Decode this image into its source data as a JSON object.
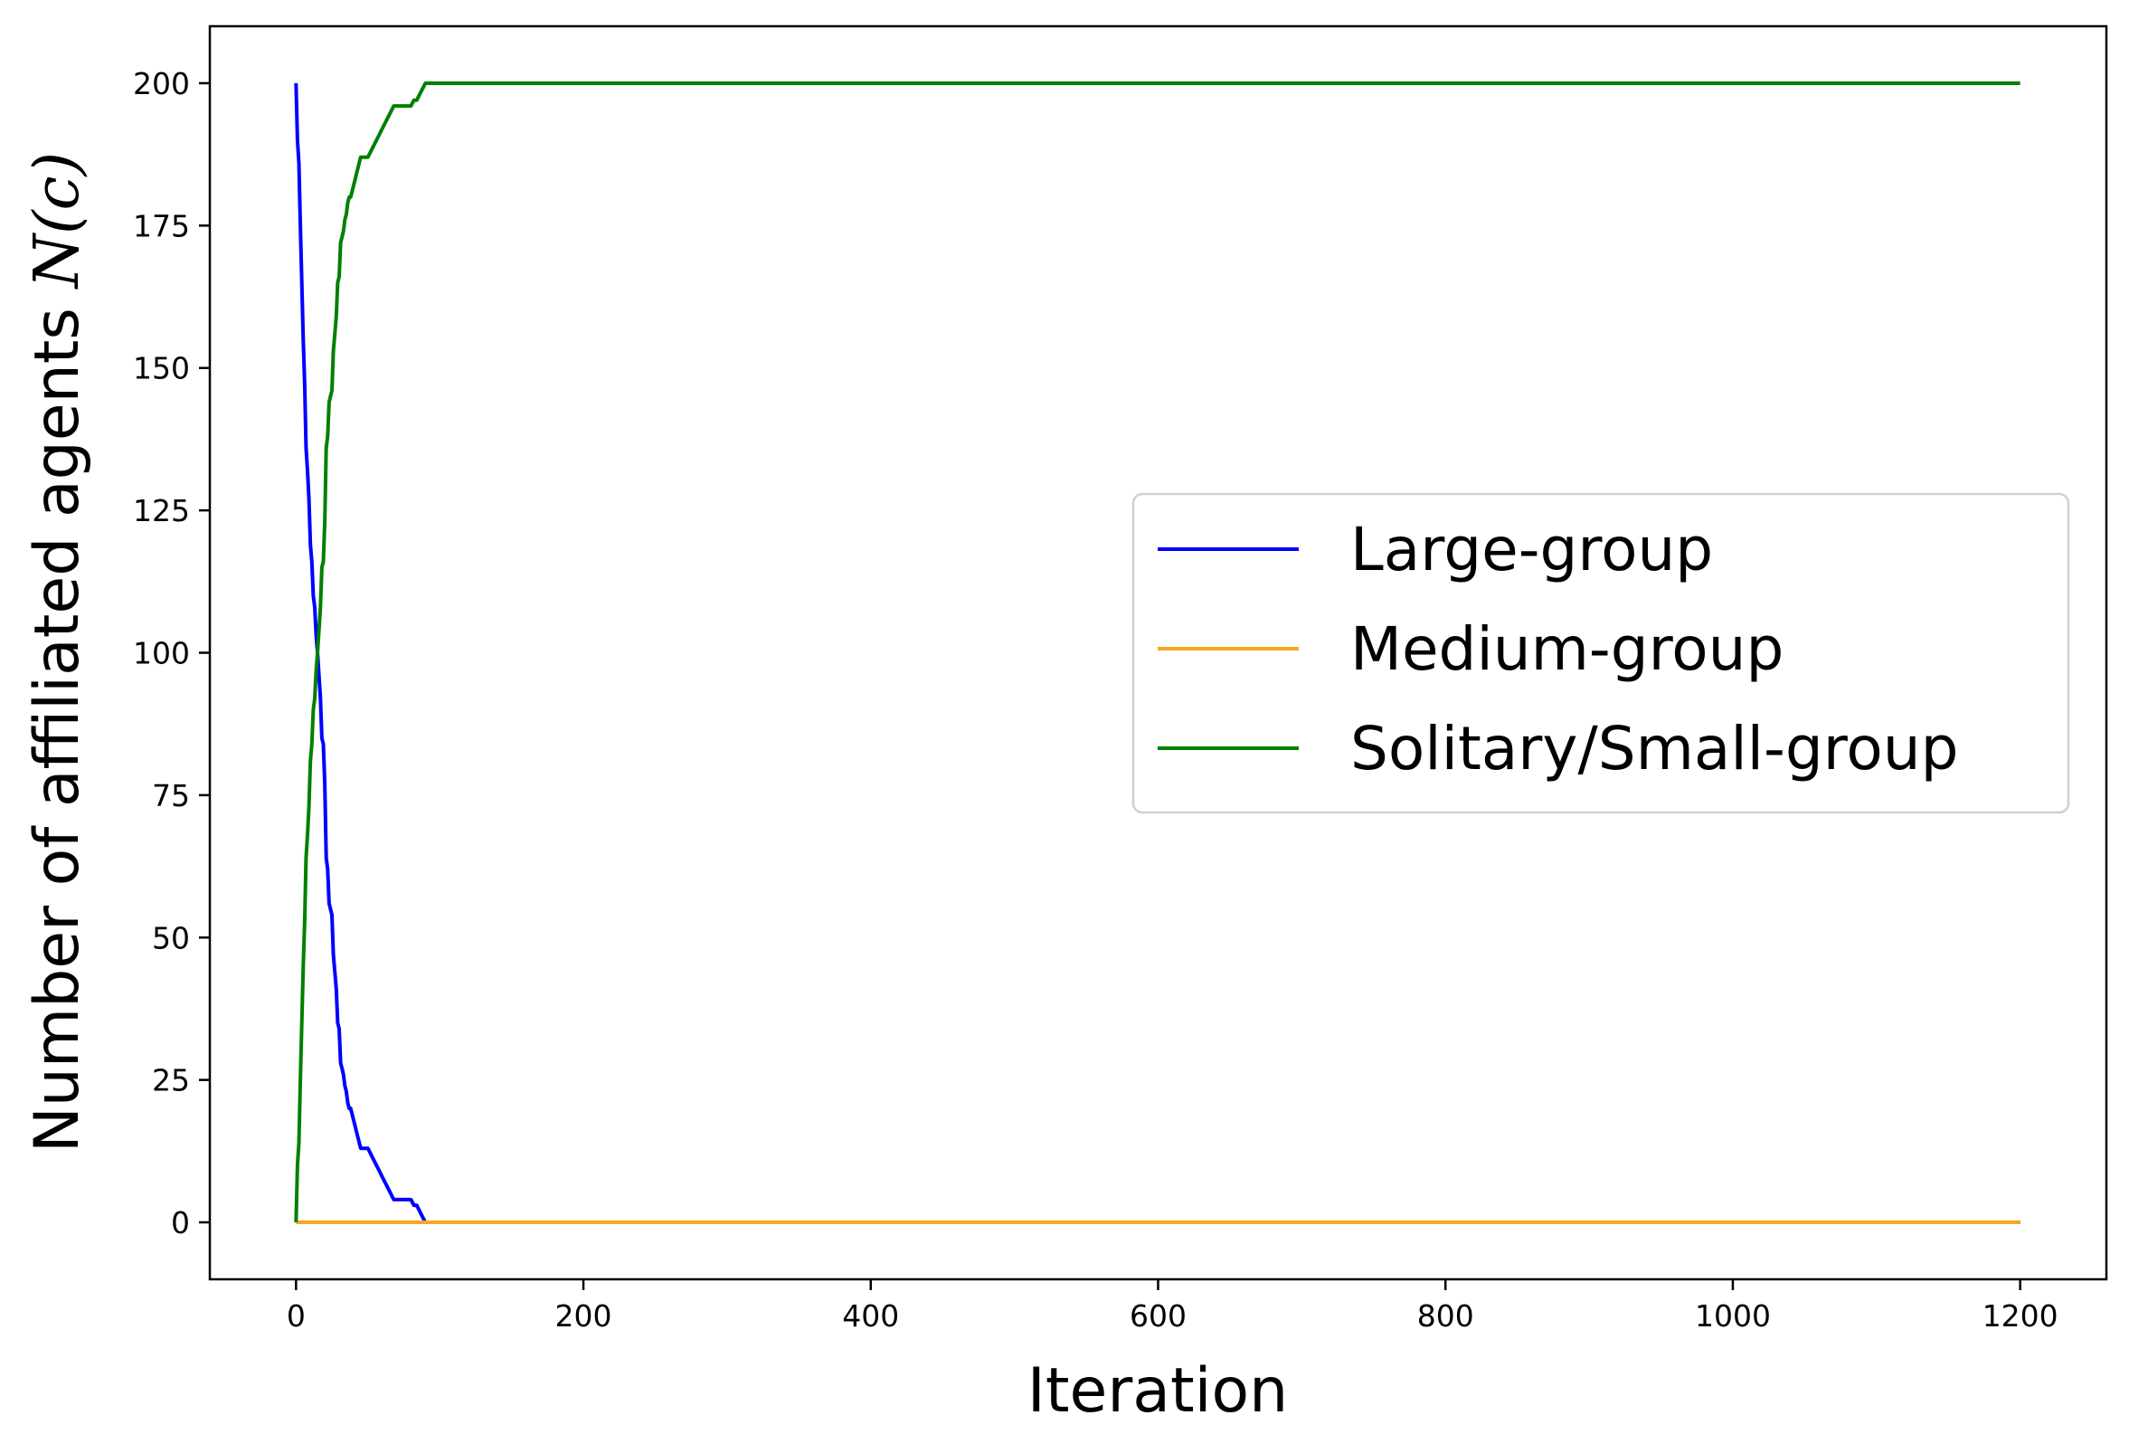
{
  "chart_data": {
    "type": "line",
    "title": "",
    "xlabel": "Iteration",
    "ylabel_text": "Number of affiliated agents ",
    "ylabel_math": "N(c)",
    "xlim": [
      -60,
      1260
    ],
    "ylim": [
      -10,
      210
    ],
    "xticks": [
      0,
      200,
      400,
      600,
      800,
      1000,
      1200
    ],
    "yticks": [
      0,
      25,
      50,
      75,
      100,
      125,
      150,
      175,
      200
    ],
    "grid": false,
    "legend_position": "center-right",
    "series": [
      {
        "name": "Large-group",
        "color": "#0000ff",
        "x": [
          0,
          1,
          2,
          3,
          4,
          5,
          6,
          7,
          8,
          9,
          10,
          11,
          12,
          13,
          14,
          15,
          16,
          17,
          18,
          19,
          20,
          21,
          22,
          23,
          24,
          25,
          26,
          27,
          28,
          29,
          30,
          31,
          32,
          33,
          34,
          35,
          36,
          37,
          38,
          39,
          40,
          41,
          42,
          43,
          44,
          45,
          46,
          47,
          48,
          49,
          50,
          52,
          54,
          56,
          58,
          60,
          62,
          64,
          66,
          68,
          70,
          72,
          74,
          76,
          78,
          80,
          82,
          84,
          86,
          88,
          90,
          92,
          1200
        ],
        "y": [
          200,
          190,
          186,
          175,
          165,
          155,
          147,
          136,
          132,
          127,
          119,
          116,
          110,
          108,
          103,
          100,
          96,
          92,
          85,
          84,
          77,
          64,
          62,
          56,
          55,
          54,
          47,
          44,
          41,
          35,
          34,
          28,
          27,
          26,
          24,
          23,
          21,
          20,
          20,
          19,
          18,
          17,
          16,
          15,
          14,
          13,
          13,
          13,
          13,
          13,
          13,
          12,
          11,
          10,
          9,
          8,
          7,
          6,
          5,
          4,
          4,
          4,
          4,
          4,
          4,
          4,
          3,
          3,
          2,
          1,
          0,
          0,
          0
        ]
      },
      {
        "name": "Medium-group",
        "color": "#f5a623",
        "x": [
          0,
          1200
        ],
        "y": [
          0,
          0
        ]
      },
      {
        "name": "Solitary/Small-group",
        "color": "#008000",
        "x": [
          0,
          1,
          2,
          3,
          4,
          5,
          6,
          7,
          8,
          9,
          10,
          11,
          12,
          13,
          14,
          15,
          16,
          17,
          18,
          19,
          20,
          21,
          22,
          23,
          24,
          25,
          26,
          27,
          28,
          29,
          30,
          31,
          32,
          33,
          34,
          35,
          36,
          37,
          38,
          39,
          40,
          41,
          42,
          43,
          44,
          45,
          46,
          47,
          48,
          49,
          50,
          52,
          54,
          56,
          58,
          60,
          62,
          64,
          66,
          68,
          70,
          72,
          74,
          76,
          78,
          80,
          82,
          84,
          86,
          88,
          90,
          92,
          1200
        ],
        "y": [
          0,
          10,
          14,
          25,
          35,
          45,
          53,
          64,
          68,
          73,
          81,
          84,
          90,
          92,
          97,
          100,
          104,
          108,
          115,
          116,
          123,
          136,
          138,
          144,
          145,
          146,
          153,
          156,
          159,
          165,
          166,
          172,
          173,
          174,
          176,
          177,
          179,
          180,
          180,
          181,
          182,
          183,
          184,
          185,
          186,
          187,
          187,
          187,
          187,
          187,
          187,
          188,
          189,
          190,
          191,
          192,
          193,
          194,
          195,
          196,
          196,
          196,
          196,
          196,
          196,
          196,
          197,
          197,
          198,
          199,
          200,
          200,
          200
        ]
      }
    ]
  }
}
